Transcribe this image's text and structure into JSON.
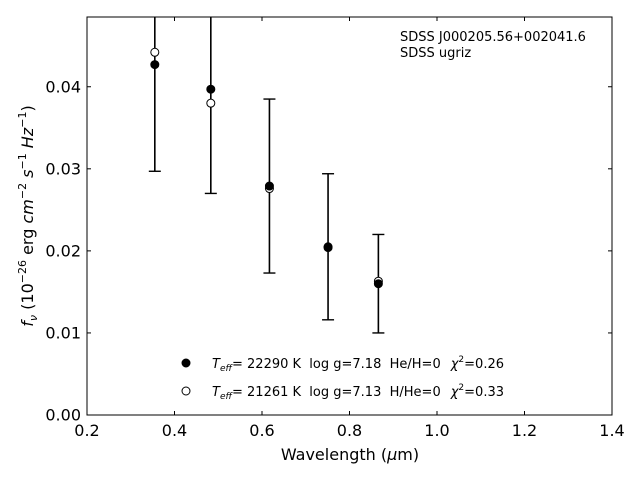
{
  "chart_data": {
    "type": "scatter",
    "xlabel_main": "Wavelength (",
    "xlabel_mu": "μ",
    "xlabel_end": "m)",
    "ylabel_parts": {
      "f": "f",
      "nu": "ν",
      "open": " (10",
      "exp1": "−26",
      "erg": " erg ",
      "cm": "cm",
      "exp2": "−2",
      "s": " s",
      "exp3": "−1",
      "hz": " Hz",
      "exp4": "−1",
      "close": ")"
    },
    "xlim": [
      0.2,
      1.4
    ],
    "ylim": [
      0.0,
      0.0485
    ],
    "xticks": [
      0.2,
      0.4,
      0.6,
      0.8,
      1.0,
      1.2,
      1.4
    ],
    "xtick_labels": [
      "0.2",
      "0.4",
      "0.6",
      "0.8",
      "1.0",
      "1.2",
      "1.4"
    ],
    "yticks": [
      0.0,
      0.01,
      0.02,
      0.03,
      0.04
    ],
    "ytick_labels": [
      "0.00",
      "0.01",
      "0.02",
      "0.03",
      "0.04"
    ],
    "annotation_lines": [
      "SDSS J000205.56+002041.6",
      "SDSS ugriz"
    ],
    "observed": [
      {
        "x": 0.355,
        "y": 0.0427,
        "err": 0.013
      },
      {
        "x": 0.483,
        "y": 0.0397,
        "err": 0.0127
      },
      {
        "x": 0.617,
        "y": 0.0279,
        "err": 0.0106
      },
      {
        "x": 0.751,
        "y": 0.0205,
        "err": 0.0089
      },
      {
        "x": 0.866,
        "y": 0.016,
        "err": 0.006
      }
    ],
    "model2": [
      {
        "x": 0.355,
        "y": 0.0442
      },
      {
        "x": 0.483,
        "y": 0.038
      },
      {
        "x": 0.617,
        "y": 0.0276
      },
      {
        "x": 0.751,
        "y": 0.0204
      },
      {
        "x": 0.866,
        "y": 0.0163
      }
    ],
    "legend": [
      {
        "marker": "filled",
        "teff_sym": "T",
        "teff_sub": "eff",
        "temp": "= 22290 K",
        "logg": "  log g=7.18",
        "comp": "  He/H=0",
        "chi": "χ",
        "chi_exp": "2",
        "chi_val": "=0.26"
      },
      {
        "marker": "open",
        "teff_sym": "T",
        "teff_sub": "eff",
        "temp": "= 21261 K",
        "logg": "  log g=7.13",
        "comp": "  H/He=0",
        "chi": "χ",
        "chi_exp": "2",
        "chi_val": "=0.33"
      }
    ],
    "legend_position": "lower-center",
    "grid": false
  }
}
